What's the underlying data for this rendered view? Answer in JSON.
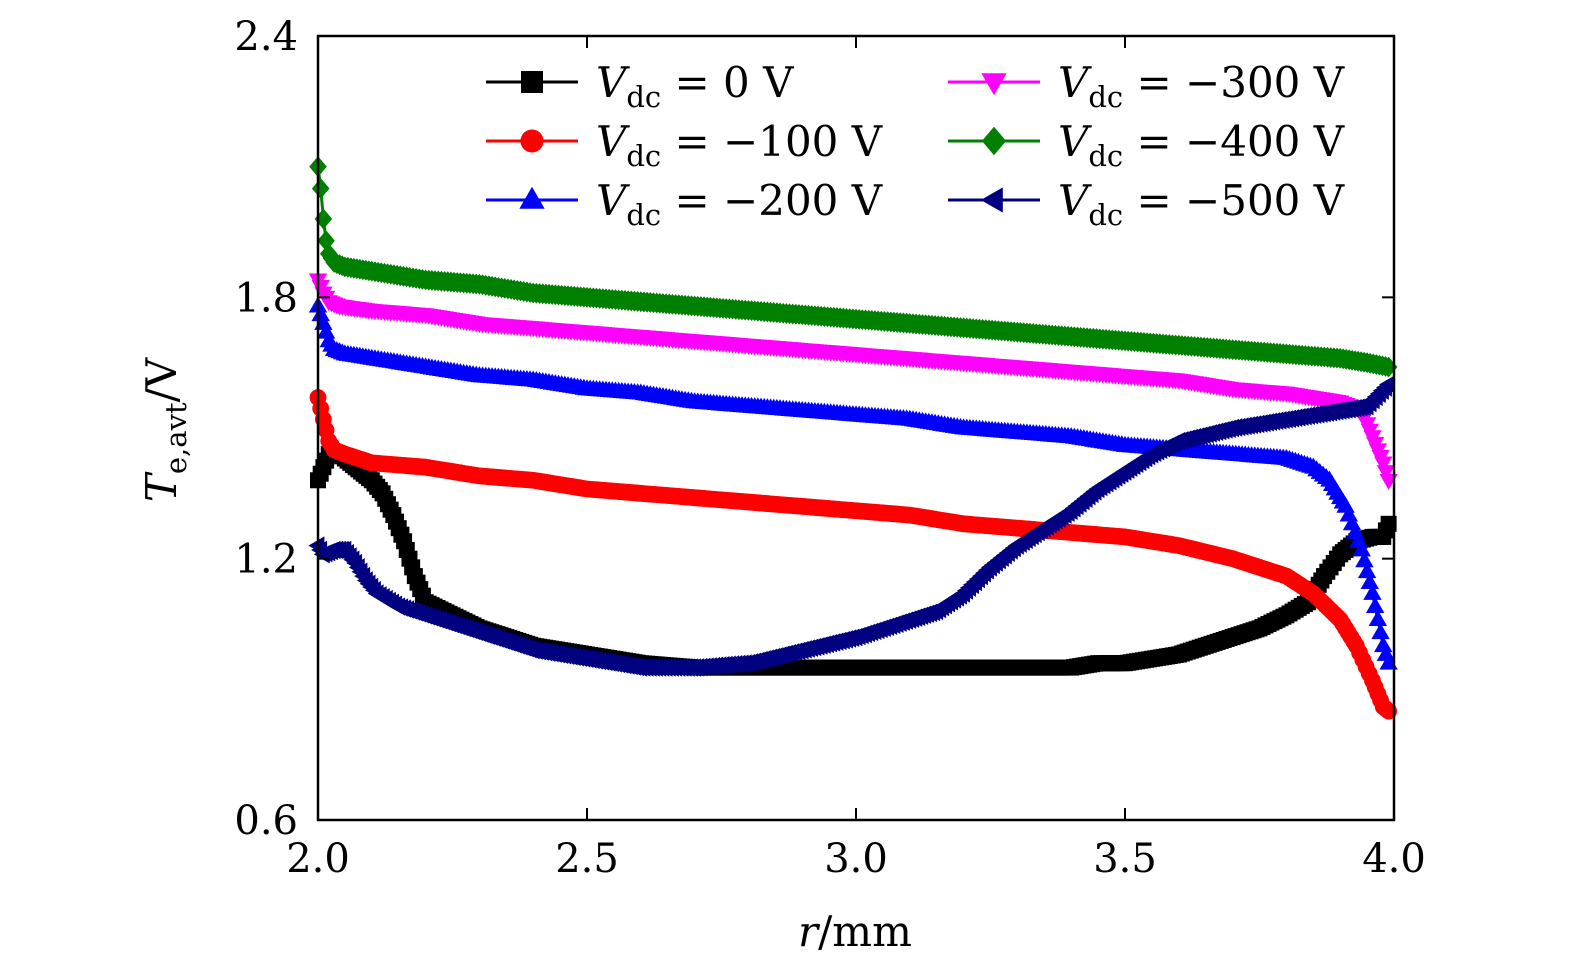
{
  "chart_data": {
    "type": "scatter",
    "title": "",
    "xlabel": "r/mm",
    "ylabel": "T_e,avt/V",
    "xlim": [
      2.0,
      4.0
    ],
    "ylim": [
      0.6,
      2.4
    ],
    "xticks": [
      "2.0",
      "2.5",
      "3.0",
      "3.5",
      "4.0"
    ],
    "yticks": [
      "0.6",
      "1.2",
      "1.8",
      "2.4"
    ],
    "grid": false,
    "legend_position": "top-right",
    "series": [
      {
        "name": "V_dc = 0 V",
        "color": "#000000",
        "marker": "square",
        "points": [
          [
            2.0,
            1.38
          ],
          [
            2.02,
            1.44
          ],
          [
            2.04,
            1.44
          ],
          [
            2.06,
            1.42
          ],
          [
            2.08,
            1.4
          ],
          [
            2.1,
            1.38
          ],
          [
            2.12,
            1.35
          ],
          [
            2.14,
            1.3
          ],
          [
            2.16,
            1.24
          ],
          [
            2.18,
            1.16
          ],
          [
            2.2,
            1.1
          ],
          [
            2.25,
            1.07
          ],
          [
            2.3,
            1.04
          ],
          [
            2.35,
            1.02
          ],
          [
            2.4,
            1.0
          ],
          [
            2.45,
            0.99
          ],
          [
            2.5,
            0.98
          ],
          [
            2.6,
            0.96
          ],
          [
            2.7,
            0.95
          ],
          [
            2.8,
            0.95
          ],
          [
            2.9,
            0.95
          ],
          [
            3.0,
            0.95
          ],
          [
            3.1,
            0.95
          ],
          [
            3.2,
            0.95
          ],
          [
            3.3,
            0.95
          ],
          [
            3.4,
            0.95
          ],
          [
            3.45,
            0.96
          ],
          [
            3.5,
            0.96
          ],
          [
            3.55,
            0.97
          ],
          [
            3.6,
            0.98
          ],
          [
            3.65,
            1.0
          ],
          [
            3.7,
            1.02
          ],
          [
            3.75,
            1.04
          ],
          [
            3.8,
            1.07
          ],
          [
            3.84,
            1.1
          ],
          [
            3.87,
            1.16
          ],
          [
            3.9,
            1.21
          ],
          [
            3.93,
            1.24
          ],
          [
            3.96,
            1.25
          ],
          [
            3.98,
            1.25
          ],
          [
            3.99,
            1.28
          ]
        ]
      },
      {
        "name": "V_dc = −100 V",
        "color": "#ff0000",
        "marker": "circle",
        "points": [
          [
            2.0,
            1.57
          ],
          [
            2.01,
            1.52
          ],
          [
            2.02,
            1.47
          ],
          [
            2.03,
            1.45
          ],
          [
            2.05,
            1.44
          ],
          [
            2.1,
            1.42
          ],
          [
            2.2,
            1.41
          ],
          [
            2.3,
            1.39
          ],
          [
            2.4,
            1.38
          ],
          [
            2.5,
            1.36
          ],
          [
            2.6,
            1.35
          ],
          [
            2.7,
            1.34
          ],
          [
            2.8,
            1.33
          ],
          [
            2.9,
            1.32
          ],
          [
            3.0,
            1.31
          ],
          [
            3.1,
            1.3
          ],
          [
            3.2,
            1.28
          ],
          [
            3.3,
            1.27
          ],
          [
            3.4,
            1.26
          ],
          [
            3.5,
            1.25
          ],
          [
            3.6,
            1.23
          ],
          [
            3.7,
            1.2
          ],
          [
            3.75,
            1.18
          ],
          [
            3.8,
            1.16
          ],
          [
            3.85,
            1.12
          ],
          [
            3.9,
            1.06
          ],
          [
            3.93,
            1.0
          ],
          [
            3.96,
            0.92
          ],
          [
            3.98,
            0.86
          ],
          [
            3.99,
            0.85
          ]
        ]
      },
      {
        "name": "V_dc = −200 V",
        "color": "#0000ff",
        "marker": "triangle-up",
        "points": [
          [
            2.0,
            1.78
          ],
          [
            2.01,
            1.74
          ],
          [
            2.02,
            1.7
          ],
          [
            2.03,
            1.68
          ],
          [
            2.05,
            1.67
          ],
          [
            2.1,
            1.66
          ],
          [
            2.2,
            1.64
          ],
          [
            2.3,
            1.62
          ],
          [
            2.4,
            1.61
          ],
          [
            2.5,
            1.59
          ],
          [
            2.6,
            1.58
          ],
          [
            2.7,
            1.56
          ],
          [
            2.8,
            1.55
          ],
          [
            2.9,
            1.54
          ],
          [
            3.0,
            1.53
          ],
          [
            3.1,
            1.52
          ],
          [
            3.2,
            1.5
          ],
          [
            3.3,
            1.49
          ],
          [
            3.4,
            1.48
          ],
          [
            3.5,
            1.46
          ],
          [
            3.6,
            1.45
          ],
          [
            3.7,
            1.44
          ],
          [
            3.8,
            1.43
          ],
          [
            3.85,
            1.41
          ],
          [
            3.88,
            1.38
          ],
          [
            3.91,
            1.32
          ],
          [
            3.94,
            1.22
          ],
          [
            3.96,
            1.12
          ],
          [
            3.98,
            1.0
          ],
          [
            3.99,
            0.96
          ]
        ]
      },
      {
        "name": "V_dc = −300 V",
        "color": "#ff00ff",
        "marker": "triangle-down",
        "points": [
          [
            2.0,
            1.84
          ],
          [
            2.01,
            1.81
          ],
          [
            2.02,
            1.79
          ],
          [
            2.04,
            1.78
          ],
          [
            2.1,
            1.77
          ],
          [
            2.2,
            1.76
          ],
          [
            2.3,
            1.74
          ],
          [
            2.4,
            1.73
          ],
          [
            2.5,
            1.72
          ],
          [
            2.6,
            1.71
          ],
          [
            2.7,
            1.7
          ],
          [
            2.8,
            1.69
          ],
          [
            2.9,
            1.68
          ],
          [
            3.0,
            1.67
          ],
          [
            3.1,
            1.66
          ],
          [
            3.2,
            1.65
          ],
          [
            3.3,
            1.64
          ],
          [
            3.4,
            1.63
          ],
          [
            3.5,
            1.62
          ],
          [
            3.6,
            1.61
          ],
          [
            3.7,
            1.59
          ],
          [
            3.8,
            1.58
          ],
          [
            3.9,
            1.56
          ],
          [
            3.94,
            1.54
          ],
          [
            3.96,
            1.48
          ],
          [
            3.98,
            1.42
          ],
          [
            3.99,
            1.38
          ]
        ]
      },
      {
        "name": "V_dc = −400 V",
        "color": "#008000",
        "marker": "diamond",
        "points": [
          [
            2.0,
            2.1
          ],
          [
            2.005,
            2.05
          ],
          [
            2.01,
            1.98
          ],
          [
            2.015,
            1.93
          ],
          [
            2.02,
            1.9
          ],
          [
            2.03,
            1.88
          ],
          [
            2.05,
            1.87
          ],
          [
            2.1,
            1.86
          ],
          [
            2.2,
            1.84
          ],
          [
            2.3,
            1.83
          ],
          [
            2.4,
            1.81
          ],
          [
            2.5,
            1.8
          ],
          [
            2.6,
            1.79
          ],
          [
            2.7,
            1.78
          ],
          [
            2.8,
            1.77
          ],
          [
            2.9,
            1.76
          ],
          [
            3.0,
            1.75
          ],
          [
            3.1,
            1.74
          ],
          [
            3.2,
            1.73
          ],
          [
            3.3,
            1.72
          ],
          [
            3.4,
            1.71
          ],
          [
            3.5,
            1.7
          ],
          [
            3.6,
            1.69
          ],
          [
            3.7,
            1.68
          ],
          [
            3.8,
            1.67
          ],
          [
            3.9,
            1.66
          ],
          [
            3.95,
            1.65
          ],
          [
            3.99,
            1.64
          ]
        ]
      },
      {
        "name": "V_dc = −500 V",
        "color": "#000080",
        "marker": "triangle-left",
        "points": [
          [
            2.0,
            1.23
          ],
          [
            2.01,
            1.21
          ],
          [
            2.03,
            1.22
          ],
          [
            2.05,
            1.22
          ],
          [
            2.07,
            1.19
          ],
          [
            2.09,
            1.15
          ],
          [
            2.11,
            1.12
          ],
          [
            2.15,
            1.09
          ],
          [
            2.2,
            1.07
          ],
          [
            2.25,
            1.05
          ],
          [
            2.3,
            1.03
          ],
          [
            2.35,
            1.01
          ],
          [
            2.4,
            0.99
          ],
          [
            2.5,
            0.97
          ],
          [
            2.6,
            0.95
          ],
          [
            2.7,
            0.95
          ],
          [
            2.8,
            0.96
          ],
          [
            2.9,
            0.99
          ],
          [
            3.0,
            1.02
          ],
          [
            3.1,
            1.06
          ],
          [
            3.15,
            1.08
          ],
          [
            3.2,
            1.12
          ],
          [
            3.25,
            1.18
          ],
          [
            3.3,
            1.23
          ],
          [
            3.35,
            1.27
          ],
          [
            3.4,
            1.31
          ],
          [
            3.45,
            1.36
          ],
          [
            3.5,
            1.4
          ],
          [
            3.55,
            1.44
          ],
          [
            3.6,
            1.47
          ],
          [
            3.7,
            1.5
          ],
          [
            3.8,
            1.52
          ],
          [
            3.9,
            1.54
          ],
          [
            3.95,
            1.55
          ],
          [
            3.99,
            1.6
          ]
        ]
      }
    ]
  },
  "legend": {
    "left": [
      {
        "sym": "V",
        "sub": "dc",
        "val": " = 0 V"
      },
      {
        "sym": "V",
        "sub": "dc",
        "val": " = −100 V"
      },
      {
        "sym": "V",
        "sub": "dc",
        "val": " = −200 V"
      }
    ],
    "right": [
      {
        "sym": "V",
        "sub": "dc",
        "val": " = −300 V"
      },
      {
        "sym": "V",
        "sub": "dc",
        "val": " = −400 V"
      },
      {
        "sym": "V",
        "sub": "dc",
        "val": " = −500 V"
      }
    ]
  },
  "axis_titles": {
    "x_symbol": "r",
    "x_unit": "/mm",
    "y_symbol": "T",
    "y_sub": "e,avt",
    "y_unit": "/V"
  }
}
